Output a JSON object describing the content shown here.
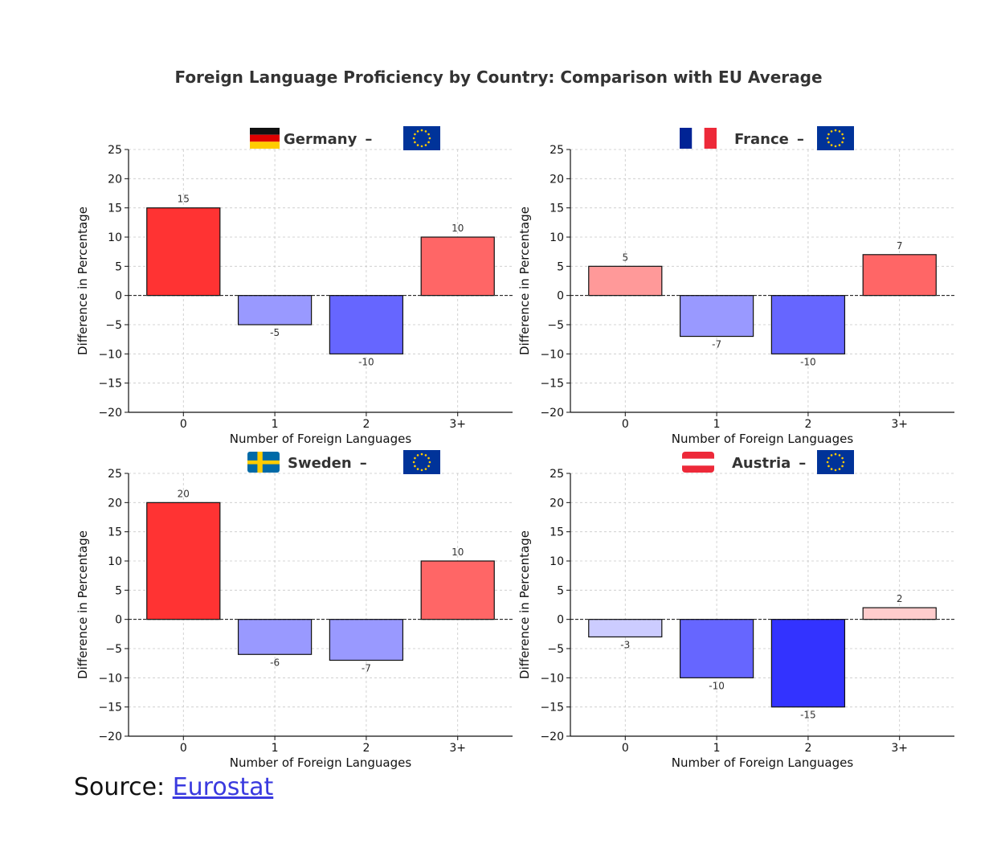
{
  "title": "Foreign Language Proficiency by Country: Comparison with EU Average",
  "source": {
    "label": "Source:",
    "link_text": "Eurostat"
  },
  "colors": {
    "positive_strong": "#ff3333",
    "positive_medium": "#ff6666",
    "positive_light": "#ff9999",
    "positive_pale": "#ffcccc",
    "negative_strong": "#3333ff",
    "negative_medium": "#6666ff",
    "negative_light": "#9999ff",
    "negative_pale": "#ccccff",
    "eu_flag": "#003399",
    "eu_stars": "#ffcc00"
  },
  "chart_data": [
    {
      "type": "bar",
      "country": "Germany",
      "separator": "–",
      "flag": "flag-germany",
      "compare_flag": "flag-eu",
      "categories": [
        "0",
        "1",
        "2",
        "3+"
      ],
      "values": [
        15,
        -5,
        -10,
        10
      ],
      "value_labels": [
        "15",
        "-5",
        "-10",
        "10"
      ],
      "xlabel": "Number of Foreign Languages",
      "ylabel": "Difference in Percentage",
      "ylim": [
        -20,
        25
      ],
      "yticks": [
        25,
        20,
        15,
        10,
        5,
        0,
        -5,
        -10,
        -15,
        -20
      ],
      "ytick_labels": [
        "25",
        "20",
        "15",
        "10",
        "5",
        "0",
        "−5",
        "−10",
        "−15",
        "−20"
      ],
      "grid": true
    },
    {
      "type": "bar",
      "country": "France",
      "separator": "–",
      "flag": "flag-france",
      "compare_flag": "flag-eu",
      "categories": [
        "0",
        "1",
        "2",
        "3+"
      ],
      "values": [
        5,
        -7,
        -10,
        7
      ],
      "value_labels": [
        "5",
        "-7",
        "-10",
        "7"
      ],
      "xlabel": "Number of Foreign Languages",
      "ylabel": "Difference in Percentage",
      "ylim": [
        -20,
        25
      ],
      "yticks": [
        25,
        20,
        15,
        10,
        5,
        0,
        -5,
        -10,
        -15,
        -20
      ],
      "ytick_labels": [
        "25",
        "20",
        "15",
        "10",
        "5",
        "0",
        "−5",
        "−10",
        "−15",
        "−20"
      ],
      "grid": true
    },
    {
      "type": "bar",
      "country": "Sweden",
      "separator": "–",
      "flag": "flag-sweden",
      "compare_flag": "flag-eu",
      "categories": [
        "0",
        "1",
        "2",
        "3+"
      ],
      "values": [
        20,
        -6,
        -7,
        10
      ],
      "value_labels": [
        "20",
        "-6",
        "-7",
        "10"
      ],
      "xlabel": "Number of Foreign Languages",
      "ylabel": "Difference in Percentage",
      "ylim": [
        -20,
        25
      ],
      "yticks": [
        25,
        20,
        15,
        10,
        5,
        0,
        -5,
        -10,
        -15,
        -20
      ],
      "ytick_labels": [
        "25",
        "20",
        "15",
        "10",
        "5",
        "0",
        "−5",
        "−10",
        "−15",
        "−20"
      ],
      "grid": true
    },
    {
      "type": "bar",
      "country": "Austria",
      "separator": "–",
      "flag": "flag-austria",
      "compare_flag": "flag-eu",
      "categories": [
        "0",
        "1",
        "2",
        "3+"
      ],
      "values": [
        -3,
        -10,
        -15,
        2
      ],
      "value_labels": [
        "-3",
        "-10",
        "-15",
        "2"
      ],
      "xlabel": "Number of Foreign Languages",
      "ylabel": "Difference in Percentage",
      "ylim": [
        -20,
        25
      ],
      "yticks": [
        25,
        20,
        15,
        10,
        5,
        0,
        -5,
        -10,
        -15,
        -20
      ],
      "ytick_labels": [
        "25",
        "20",
        "15",
        "10",
        "5",
        "0",
        "−5",
        "−10",
        "−15",
        "−20"
      ],
      "grid": true
    }
  ]
}
